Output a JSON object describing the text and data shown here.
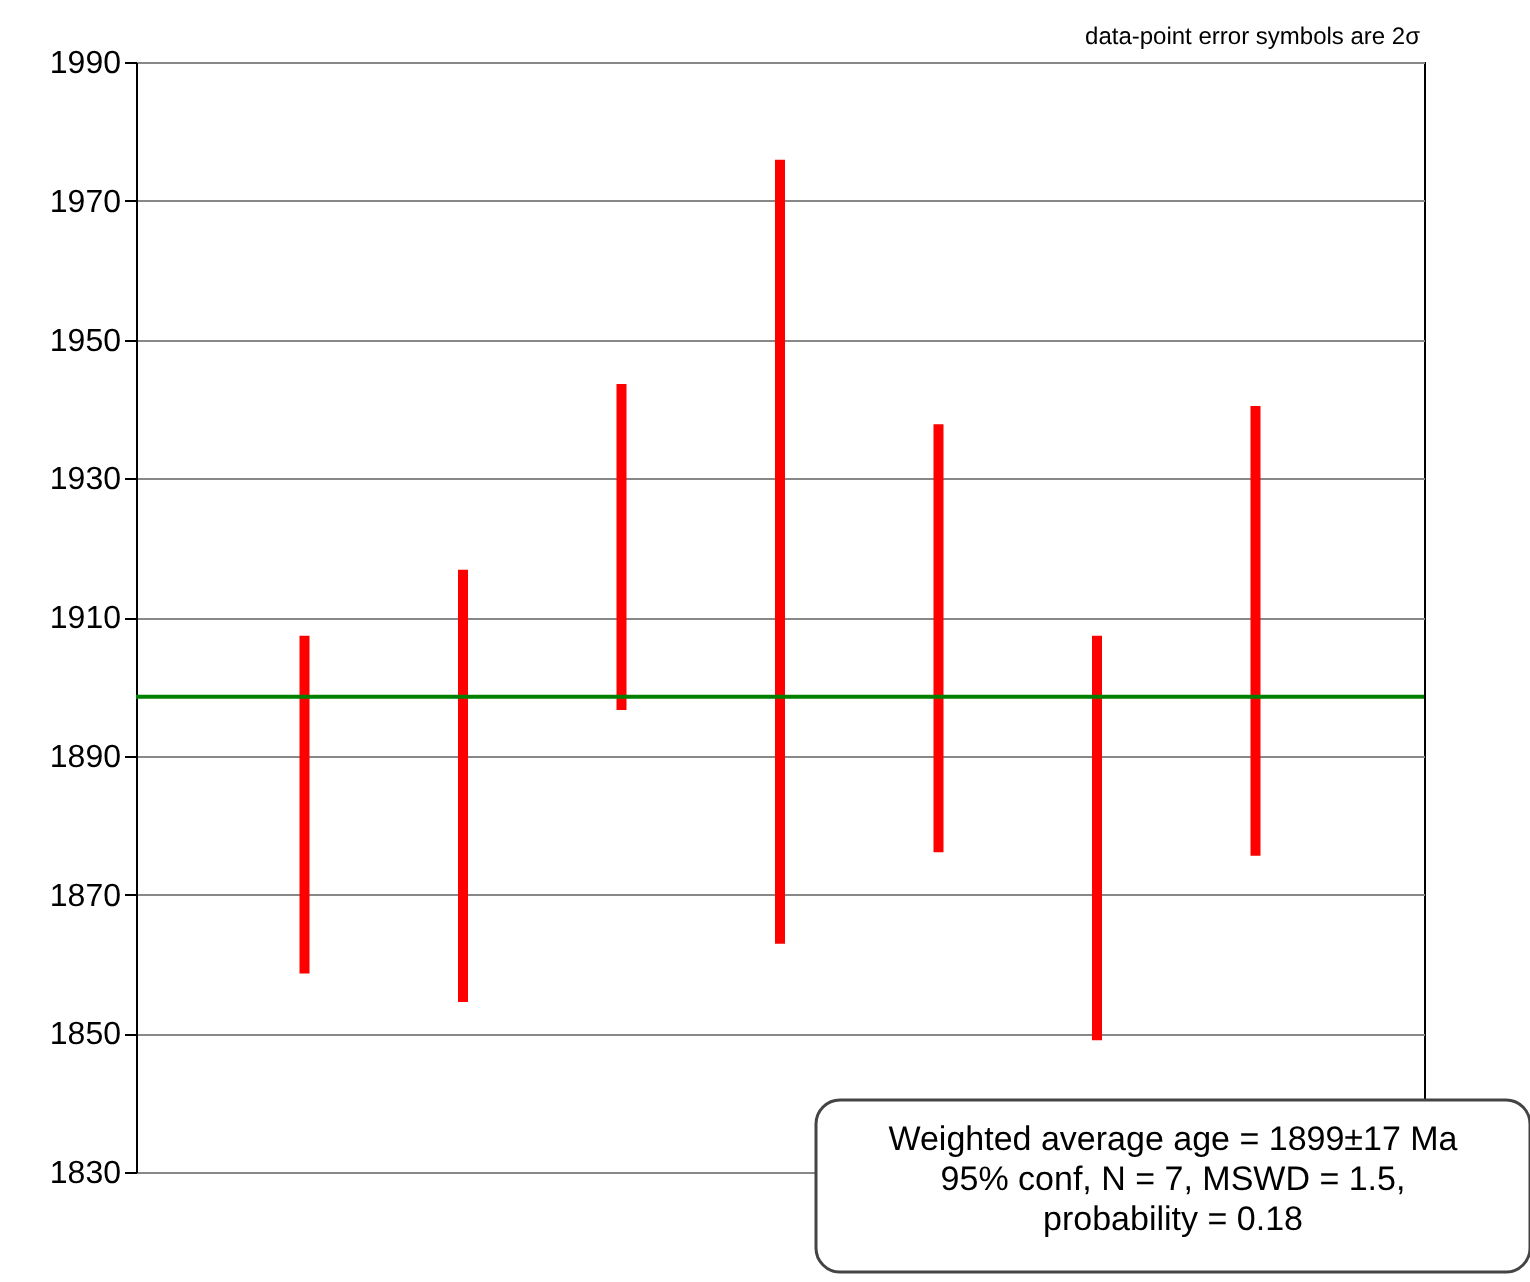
{
  "chart_data": {
    "type": "bar",
    "categories": [
      null,
      null,
      null,
      null,
      null,
      null,
      null
    ],
    "series": [
      {
        "color": "#ff0000",
        "base": [
          1858.6,
          1854.5,
          1896.6,
          1862.9,
          1876.1,
          1849.0,
          1875.6
        ],
        "values": [
          48.7,
          62.3,
          47.0,
          113.0,
          61.7,
          58.3,
          64.8
        ]
      }
    ],
    "ylim": [
      1830,
      1990
    ],
    "yticks": [
      1830,
      1850,
      1870,
      1890,
      1910,
      1930,
      1950,
      1970,
      1990
    ],
    "grid": "y",
    "tick_labels": "y",
    "ref_lines": [
      {
        "axis": "y",
        "value": 1898.5,
        "color": "#008000"
      }
    ],
    "annotations": [
      "data-point error symbols are 2σ",
      "Weighted average age = 1899±17 Ma\n95% conf, N = 7, MSWD = 1.5,\nprobability = 0.18"
    ]
  }
}
